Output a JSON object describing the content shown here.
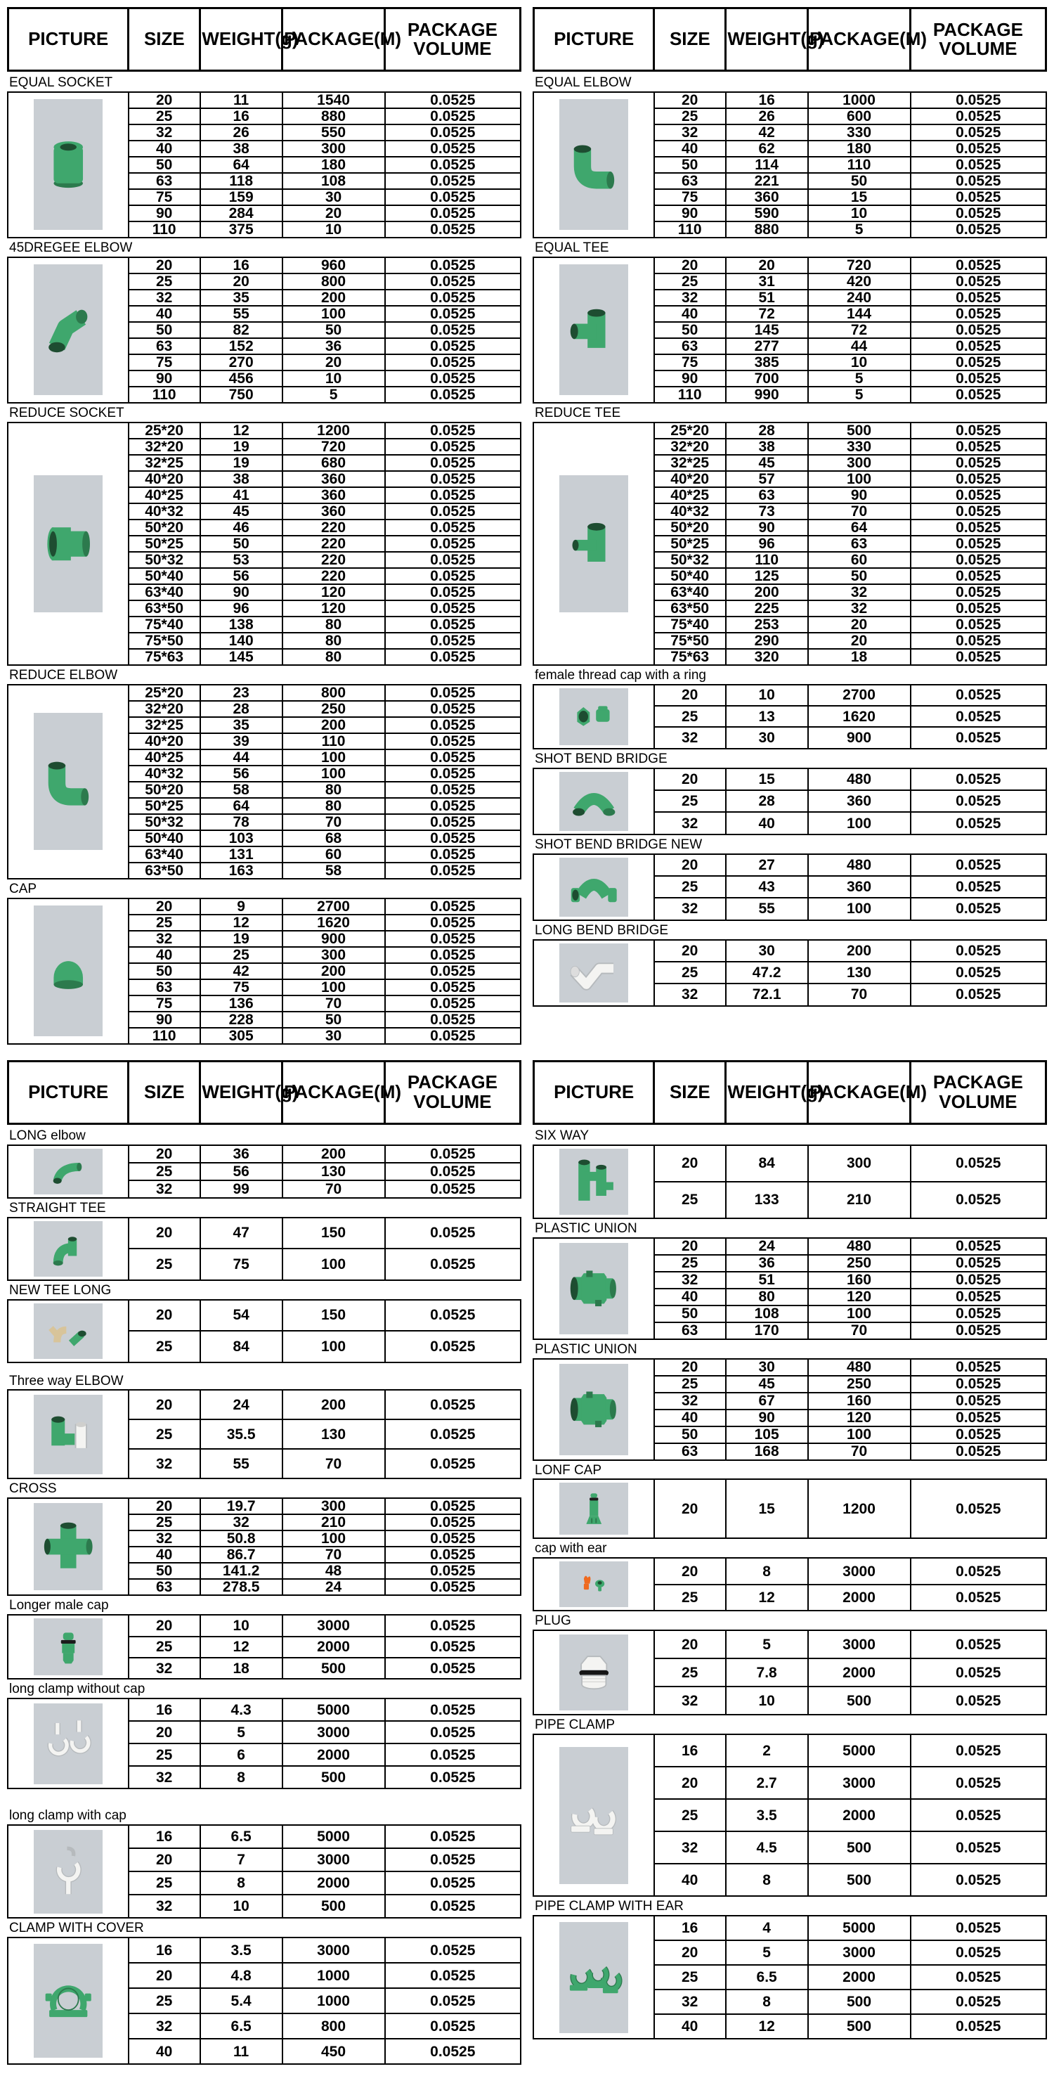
{
  "columns": [
    "PICTURE",
    "SIZE",
    "WEIGHT(g)",
    "PACKAGE(M)",
    "PACKAGE VOLUME"
  ],
  "package_volume": "0.0525",
  "colors": {
    "fitting_green": "#3fa76d",
    "fitting_green_dark": "#2c7a4d",
    "fitting_hole": "#1e4d31",
    "white_fitting": "#f4f4f2",
    "white_fitting_stroke": "#b6babd",
    "beige_fitting": "#d8c49a",
    "orange_fitting": "#ef6a1f",
    "photo_background": "#c9ced3",
    "table_border": "#000000"
  },
  "panels": [
    {
      "id": "top_left",
      "sections": [
        {
          "label": "EQUAL SOCKET",
          "icon": "socket",
          "volume": "0.0525",
          "rows": [
            [
              "20",
              "11",
              "1540"
            ],
            [
              "25",
              "16",
              "880"
            ],
            [
              "32",
              "26",
              "550"
            ],
            [
              "40",
              "38",
              "300"
            ],
            [
              "50",
              "64",
              "180"
            ],
            [
              "63",
              "118",
              "108"
            ],
            [
              "75",
              "159",
              "30"
            ],
            [
              "90",
              "284",
              "20"
            ],
            [
              "110",
              "375",
              "10"
            ]
          ]
        },
        {
          "label": "45DREGEE ELBOW",
          "icon": "elbow45",
          "volume": "0.0525",
          "rows": [
            [
              "20",
              "16",
              "960"
            ],
            [
              "25",
              "20",
              "800"
            ],
            [
              "32",
              "35",
              "200"
            ],
            [
              "40",
              "55",
              "100"
            ],
            [
              "50",
              "82",
              "50"
            ],
            [
              "63",
              "152",
              "36"
            ],
            [
              "75",
              "270",
              "20"
            ],
            [
              "90",
              "456",
              "10"
            ],
            [
              "110",
              "750",
              "5"
            ]
          ]
        },
        {
          "label": "REDUCE SOCKET",
          "icon": "reduce-socket",
          "volume": "0.0525",
          "rows": [
            [
              "25*20",
              "12",
              "1200"
            ],
            [
              "32*20",
              "19",
              "720"
            ],
            [
              "32*25",
              "19",
              "680"
            ],
            [
              "40*20",
              "38",
              "360"
            ],
            [
              "40*25",
              "41",
              "360"
            ],
            [
              "40*32",
              "45",
              "360"
            ],
            [
              "50*20",
              "46",
              "220"
            ],
            [
              "50*25",
              "50",
              "220"
            ],
            [
              "50*32",
              "53",
              "220"
            ],
            [
              "50*40",
              "56",
              "220"
            ],
            [
              "63*40",
              "90",
              "120"
            ],
            [
              "63*50",
              "96",
              "120"
            ],
            [
              "75*40",
              "138",
              "80"
            ],
            [
              "75*50",
              "140",
              "80"
            ],
            [
              "75*63",
              "145",
              "80"
            ]
          ]
        },
        {
          "label": "REDUCE ELBOW",
          "icon": "elbow90",
          "volume": "0.0525",
          "rows": [
            [
              "25*20",
              "23",
              "800"
            ],
            [
              "32*20",
              "28",
              "250"
            ],
            [
              "32*25",
              "35",
              "200"
            ],
            [
              "40*20",
              "39",
              "110"
            ],
            [
              "40*25",
              "44",
              "100"
            ],
            [
              "40*32",
              "56",
              "100"
            ],
            [
              "50*20",
              "58",
              "80"
            ],
            [
              "50*25",
              "64",
              "80"
            ],
            [
              "50*32",
              "78",
              "70"
            ],
            [
              "50*40",
              "103",
              "68"
            ],
            [
              "63*40",
              "131",
              "60"
            ],
            [
              "63*50",
              "163",
              "58"
            ]
          ]
        },
        {
          "label": "CAP",
          "icon": "cap",
          "volume": "0.0525",
          "rows": [
            [
              "20",
              "9",
              "2700"
            ],
            [
              "25",
              "12",
              "1620"
            ],
            [
              "32",
              "19",
              "900"
            ],
            [
              "40",
              "25",
              "300"
            ],
            [
              "50",
              "42",
              "200"
            ],
            [
              "63",
              "75",
              "100"
            ],
            [
              "75",
              "136",
              "70"
            ],
            [
              "90",
              "228",
              "50"
            ],
            [
              "110",
              "305",
              "30"
            ]
          ]
        }
      ]
    },
    {
      "id": "top_right",
      "sections": [
        {
          "label": "EQUAL  ELBOW",
          "icon": "elbow90",
          "volume": "0.0525",
          "rows": [
            [
              "20",
              "16",
              "1000"
            ],
            [
              "25",
              "26",
              "600"
            ],
            [
              "32",
              "42",
              "330"
            ],
            [
              "40",
              "62",
              "180"
            ],
            [
              "50",
              "114",
              "110"
            ],
            [
              "63",
              "221",
              "50"
            ],
            [
              "75",
              "360",
              "15"
            ],
            [
              "90",
              "590",
              "10"
            ],
            [
              "110",
              "880",
              "5"
            ]
          ]
        },
        {
          "label": "EQUAL  TEE",
          "icon": "tee",
          "volume": "0.0525",
          "rows": [
            [
              "20",
              "20",
              "720"
            ],
            [
              "25",
              "31",
              "420"
            ],
            [
              "32",
              "51",
              "240"
            ],
            [
              "40",
              "72",
              "144"
            ],
            [
              "50",
              "145",
              "72"
            ],
            [
              "63",
              "277",
              "44"
            ],
            [
              "75",
              "385",
              "10"
            ],
            [
              "90",
              "700",
              "5"
            ],
            [
              "110",
              "990",
              "5"
            ]
          ]
        },
        {
          "label": "REDUCE TEE",
          "icon": "reduce-tee",
          "volume": "0.0525",
          "rows": [
            [
              "25*20",
              "28",
              "500"
            ],
            [
              "32*20",
              "38",
              "330"
            ],
            [
              "32*25",
              "45",
              "300"
            ],
            [
              "40*20",
              "57",
              "100"
            ],
            [
              "40*25",
              "63",
              "90"
            ],
            [
              "40*32",
              "73",
              "70"
            ],
            [
              "50*20",
              "90",
              "64"
            ],
            [
              "50*25",
              "96",
              "63"
            ],
            [
              "50*32",
              "110",
              "60"
            ],
            [
              "50*40",
              "125",
              "50"
            ],
            [
              "63*40",
              "200",
              "32"
            ],
            [
              "63*50",
              "225",
              "32"
            ],
            [
              "75*40",
              "253",
              "20"
            ],
            [
              "75*50",
              "290",
              "20"
            ],
            [
              "75*63",
              "320",
              "18"
            ]
          ]
        },
        {
          "label": "female thread cap with a ring",
          "icon": "thread-cap-ring",
          "volume": "0.0525",
          "rows": [
            [
              "20",
              "10",
              "2700"
            ],
            [
              "25",
              "13",
              "1620"
            ],
            [
              "32",
              "30",
              "900"
            ]
          ]
        },
        {
          "label": "SHOT BEND BRIDGE",
          "icon": "bridge",
          "volume": "0.0525",
          "rows": [
            [
              "20",
              "15",
              "480"
            ],
            [
              "25",
              "28",
              "360"
            ],
            [
              "32",
              "40",
              "100"
            ]
          ]
        },
        {
          "label": "SHOT BEND BRIDGE NEW",
          "icon": "bridge-new",
          "volume": "0.0525",
          "rows": [
            [
              "20",
              "27",
              "480"
            ],
            [
              "25",
              "43",
              "360"
            ],
            [
              "32",
              "55",
              "100"
            ]
          ]
        },
        {
          "label": "LONG BEND BRIDGE",
          "icon": "bridge-long",
          "volume": "0.0525",
          "rows": [
            [
              "20",
              "30",
              "200"
            ],
            [
              "25",
              "47.2",
              "130"
            ],
            [
              "32",
              "72.1",
              "70"
            ]
          ]
        }
      ]
    },
    {
      "id": "bottom_left",
      "sections": [
        {
          "label": "LONG elbow",
          "icon": "long-elbow",
          "volume": "0.0525",
          "rows": [
            [
              "20",
              "36",
              "200"
            ],
            [
              "25",
              "56",
              "130"
            ],
            [
              "32",
              "99",
              "70"
            ]
          ]
        },
        {
          "label": "STRAIGHT TEE",
          "icon": "straight-tee",
          "volume": "0.0525",
          "rows": [
            [
              "20",
              "47",
              "150"
            ],
            [
              "25",
              "75",
              "100"
            ]
          ]
        },
        {
          "label": "NEW TEE LONG",
          "icon": "new-tee-long",
          "volume": "0.0525",
          "rows": [
            [
              "20",
              "54",
              "150"
            ],
            [
              "25",
              "84",
              "100"
            ]
          ]
        },
        {
          "label": "Three way ELBOW",
          "icon": "three-way",
          "volume": "0.0525",
          "rows": [
            [
              "20",
              "24",
              "200"
            ],
            [
              "25",
              "35.5",
              "130"
            ],
            [
              "32",
              "55",
              "70"
            ]
          ]
        },
        {
          "label": "CROSS",
          "icon": "cross",
          "volume": "0.0525",
          "rows": [
            [
              "20",
              "19.7",
              "300"
            ],
            [
              "25",
              "32",
              "210"
            ],
            [
              "32",
              "50.8",
              "100"
            ],
            [
              "40",
              "86.7",
              "70"
            ],
            [
              "50",
              "141.2",
              "48"
            ],
            [
              "63",
              "278.5",
              "24"
            ]
          ]
        },
        {
          "label": "Longer male cap",
          "icon": "male-cap",
          "volume": "0.0525",
          "rows": [
            [
              "20",
              "10",
              "3000"
            ],
            [
              "25",
              "12",
              "2000"
            ],
            [
              "32",
              "18",
              "500"
            ]
          ]
        },
        {
          "label": "long clamp without cap",
          "icon": "clamp-plain",
          "volume": "0.0525",
          "rows": [
            [
              "16",
              "4.3",
              "5000"
            ],
            [
              "20",
              "5",
              "3000"
            ],
            [
              "25",
              "6",
              "2000"
            ],
            [
              "32",
              "8",
              "500"
            ]
          ]
        },
        {
          "label": "long clamp with cap",
          "icon": "clamp-cap",
          "volume": "0.0525",
          "rows": [
            [
              "16",
              "6.5",
              "5000"
            ],
            [
              "20",
              "7",
              "3000"
            ],
            [
              "25",
              "8",
              "2000"
            ],
            [
              "32",
              "10",
              "500"
            ]
          ]
        },
        {
          "label": "CLAMP WITH COVER",
          "icon": "clamp-cover",
          "volume": "0.0525",
          "rows": [
            [
              "16",
              "3.5",
              "3000"
            ],
            [
              "20",
              "4.8",
              "1000"
            ],
            [
              "25",
              "5.4",
              "1000"
            ],
            [
              "32",
              "6.5",
              "800"
            ],
            [
              "40",
              "11",
              "450"
            ]
          ]
        }
      ]
    },
    {
      "id": "bottom_right",
      "sections": [
        {
          "label": "SIX WAY",
          "icon": "six-way",
          "volume": "0.0525",
          "rows": [
            [
              "20",
              "84",
              "300"
            ],
            [
              "25",
              "133",
              "210"
            ]
          ]
        },
        {
          "label": "PLASTIC UNION",
          "icon": "union",
          "volume": "0.0525",
          "rows": [
            [
              "20",
              "24",
              "480"
            ],
            [
              "25",
              "36",
              "250"
            ],
            [
              "32",
              "51",
              "160"
            ],
            [
              "40",
              "80",
              "120"
            ],
            [
              "50",
              "108",
              "100"
            ],
            [
              "63",
              "170",
              "70"
            ]
          ]
        },
        {
          "label": "PLASTIC UNION",
          "icon": "union",
          "volume": "0.0525",
          "rows": [
            [
              "20",
              "30",
              "480"
            ],
            [
              "25",
              "45",
              "250"
            ],
            [
              "32",
              "67",
              "160"
            ],
            [
              "40",
              "90",
              "120"
            ],
            [
              "50",
              "105",
              "100"
            ],
            [
              "63",
              "168",
              "70"
            ]
          ]
        },
        {
          "label": "LONF CAP",
          "icon": "lonf-cap",
          "volume": "0.0525",
          "rows": [
            [
              "20",
              "15",
              "1200"
            ]
          ]
        },
        {
          "label": "cap with ear",
          "icon": "cap-ear",
          "volume": "0.0525",
          "rows": [
            [
              "20",
              "8",
              "3000"
            ],
            [
              "25",
              "12",
              "2000"
            ]
          ]
        },
        {
          "label": "PLUG",
          "icon": "plug",
          "volume": "0.0525",
          "rows": [
            [
              "20",
              "5",
              "3000"
            ],
            [
              "25",
              "7.8",
              "2000"
            ],
            [
              "32",
              "10",
              "500"
            ]
          ]
        },
        {
          "label": "PIPE  CLAMP",
          "icon": "pipe-clamp",
          "volume": "0.0525",
          "rows": [
            [
              "16",
              "2",
              "5000"
            ],
            [
              "20",
              "2.7",
              "3000"
            ],
            [
              "25",
              "3.5",
              "2000"
            ],
            [
              "32",
              "4.5",
              "500"
            ],
            [
              "40",
              "8",
              "500"
            ]
          ]
        },
        {
          "label": "PIPE CLAMP WITH EAR",
          "icon": "pipe-clamp-ear",
          "volume": "0.0525",
          "rows": [
            [
              "16",
              "4",
              "5000"
            ],
            [
              "20",
              "5",
              "3000"
            ],
            [
              "25",
              "6.5",
              "2000"
            ],
            [
              "32",
              "8",
              "500"
            ],
            [
              "40",
              "12",
              "500"
            ]
          ]
        }
      ]
    }
  ]
}
